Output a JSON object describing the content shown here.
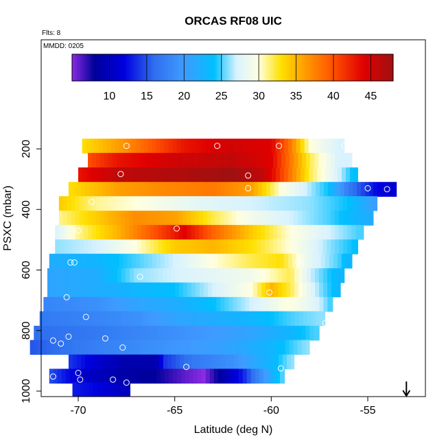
{
  "chart_data": {
    "type": "heatmap",
    "title": "ORCAS RF08 UIC",
    "annotations": {
      "flights": "Flts: 8",
      "date": "MMDD: 0205"
    },
    "xlabel": "Latitude (deg N)",
    "ylabel": "PSXC (mbar)",
    "xlim": [
      -71.8,
      -52.2
    ],
    "ylim": [
      1010,
      100
    ],
    "y_reversed": true,
    "x_ticks": [
      -70,
      -65,
      -60,
      -55
    ],
    "y_ticks": [
      200,
      400,
      600,
      800,
      1000
    ],
    "colorbar": {
      "range": [
        5,
        48
      ],
      "ticks": [
        10,
        15,
        20,
        25,
        30,
        35,
        40,
        45
      ],
      "color_stops": [
        {
          "v": 5,
          "c": "#8a2be2"
        },
        {
          "v": 8,
          "c": "#00009a"
        },
        {
          "v": 12,
          "c": "#0000e0"
        },
        {
          "v": 16,
          "c": "#2f6fef"
        },
        {
          "v": 20,
          "c": "#3f9bff"
        },
        {
          "v": 24,
          "c": "#00bfff"
        },
        {
          "v": 27,
          "c": "#d8f2ff"
        },
        {
          "v": 30,
          "c": "#ffffe0"
        },
        {
          "v": 33,
          "c": "#ffe000"
        },
        {
          "v": 36,
          "c": "#ffa000"
        },
        {
          "v": 40,
          "c": "#ff5000"
        },
        {
          "v": 44,
          "c": "#e00000"
        },
        {
          "v": 48,
          "c": "#a01010"
        }
      ]
    },
    "rows": [
      {
        "p": 190,
        "x0": -69.8,
        "x1": -56.2,
        "values": [
          {
            "x": -69.8,
            "v": 33
          },
          {
            "x": -68,
            "v": 36
          },
          {
            "x": -66,
            "v": 40
          },
          {
            "x": -64.5,
            "v": 43
          },
          {
            "x": -62,
            "v": 45
          },
          {
            "x": -60,
            "v": 44
          },
          {
            "x": -59,
            "v": 38
          },
          {
            "x": -58,
            "v": 30
          },
          {
            "x": -56.5,
            "v": 27
          }
        ]
      },
      {
        "p": 237,
        "x0": -69.5,
        "x1": -55.8,
        "values": [
          {
            "x": -69.5,
            "v": 40
          },
          {
            "x": -68,
            "v": 43
          },
          {
            "x": -65,
            "v": 45
          },
          {
            "x": -62,
            "v": 46
          },
          {
            "x": -60,
            "v": 44
          },
          {
            "x": -59,
            "v": 38
          },
          {
            "x": -58,
            "v": 32
          },
          {
            "x": -56.5,
            "v": 27
          }
        ]
      },
      {
        "p": 285,
        "x0": -70.0,
        "x1": -55.5,
        "values": [
          {
            "x": -70,
            "v": 43
          },
          {
            "x": -68,
            "v": 46
          },
          {
            "x": -65,
            "v": 47
          },
          {
            "x": -62,
            "v": 48
          },
          {
            "x": -60.5,
            "v": 46
          },
          {
            "x": -60,
            "v": 44
          },
          {
            "x": -59,
            "v": 38
          },
          {
            "x": -58,
            "v": 32
          },
          {
            "x": -56.5,
            "v": 27
          },
          {
            "x": -55.8,
            "v": 24
          }
        ]
      },
      {
        "p": 333,
        "x0": -70.5,
        "x1": -53.5,
        "values": [
          {
            "x": -70.5,
            "v": 33
          },
          {
            "x": -68,
            "v": 36
          },
          {
            "x": -66,
            "v": 37
          },
          {
            "x": -63,
            "v": 38
          },
          {
            "x": -61,
            "v": 36
          },
          {
            "x": -59.5,
            "v": 30
          },
          {
            "x": -57,
            "v": 24
          },
          {
            "x": -56,
            "v": 17
          },
          {
            "x": -54.5,
            "v": 12
          },
          {
            "x": -53.5,
            "v": 11
          }
        ]
      },
      {
        "p": 380,
        "x0": -71.0,
        "x1": -54.5,
        "values": [
          {
            "x": -71,
            "v": 34
          },
          {
            "x": -69,
            "v": 31
          },
          {
            "x": -67,
            "v": 30
          },
          {
            "x": -64,
            "v": 28
          },
          {
            "x": -61,
            "v": 27
          },
          {
            "x": -58,
            "v": 26
          },
          {
            "x": -56,
            "v": 24
          },
          {
            "x": -54.5,
            "v": 20
          }
        ]
      },
      {
        "p": 428,
        "x0": -71.0,
        "x1": -54.7,
        "values": [
          {
            "x": -71,
            "v": 31
          },
          {
            "x": -69,
            "v": 34
          },
          {
            "x": -67,
            "v": 37
          },
          {
            "x": -65,
            "v": 36
          },
          {
            "x": -63,
            "v": 32
          },
          {
            "x": -61,
            "v": 29
          },
          {
            "x": -59,
            "v": 27
          },
          {
            "x": -57,
            "v": 25
          },
          {
            "x": -55,
            "v": 22
          }
        ]
      },
      {
        "p": 475,
        "x0": -71.2,
        "x1": -55.2,
        "values": [
          {
            "x": -71.2,
            "v": 27
          },
          {
            "x": -70,
            "v": 31
          },
          {
            "x": -68,
            "v": 35
          },
          {
            "x": -66,
            "v": 40
          },
          {
            "x": -64.5,
            "v": 44
          },
          {
            "x": -63,
            "v": 39
          },
          {
            "x": -61,
            "v": 34
          },
          {
            "x": -59,
            "v": 30
          },
          {
            "x": -57,
            "v": 27
          },
          {
            "x": -55.5,
            "v": 25
          }
        ]
      },
      {
        "p": 523,
        "x0": -71.2,
        "x1": -55.5,
        "values": [
          {
            "x": -71.2,
            "v": 26
          },
          {
            "x": -69,
            "v": 27
          },
          {
            "x": -67,
            "v": 30
          },
          {
            "x": -65,
            "v": 34
          },
          {
            "x": -63,
            "v": 35
          },
          {
            "x": -61,
            "v": 33
          },
          {
            "x": -59,
            "v": 30
          },
          {
            "x": -57,
            "v": 26
          },
          {
            "x": -55.7,
            "v": 24
          }
        ]
      },
      {
        "p": 570,
        "x0": -71.5,
        "x1": -55.8,
        "values": [
          {
            "x": -71.5,
            "v": 22
          },
          {
            "x": -69,
            "v": 23
          },
          {
            "x": -67,
            "v": 25
          },
          {
            "x": -65,
            "v": 27
          },
          {
            "x": -63,
            "v": 30
          },
          {
            "x": -61,
            "v": 32
          },
          {
            "x": -59.5,
            "v": 33
          },
          {
            "x": -58,
            "v": 28
          },
          {
            "x": -56.5,
            "v": 25
          },
          {
            "x": -56,
            "v": 23
          }
        ]
      },
      {
        "p": 618,
        "x0": -71.6,
        "x1": -56.2,
        "values": [
          {
            "x": -71.6,
            "v": 21
          },
          {
            "x": -69,
            "v": 22
          },
          {
            "x": -67,
            "v": 26
          },
          {
            "x": -65,
            "v": 27
          },
          {
            "x": -63,
            "v": 28
          },
          {
            "x": -61,
            "v": 29
          },
          {
            "x": -59,
            "v": 32
          },
          {
            "x": -58,
            "v": 27
          },
          {
            "x": -56.5,
            "v": 23
          }
        ]
      },
      {
        "p": 665,
        "x0": -71.6,
        "x1": -56.4,
        "values": [
          {
            "x": -71.6,
            "v": 21
          },
          {
            "x": -69,
            "v": 22
          },
          {
            "x": -67,
            "v": 23
          },
          {
            "x": -65,
            "v": 24
          },
          {
            "x": -63,
            "v": 27
          },
          {
            "x": -61,
            "v": 30
          },
          {
            "x": -60,
            "v": 35
          },
          {
            "x": -59,
            "v": 32
          },
          {
            "x": -57.5,
            "v": 26
          },
          {
            "x": -56.5,
            "v": 23
          }
        ]
      },
      {
        "p": 713,
        "x0": -71.8,
        "x1": -56.8,
        "values": [
          {
            "x": -71.8,
            "v": 18
          },
          {
            "x": -69,
            "v": 19
          },
          {
            "x": -67,
            "v": 21
          },
          {
            "x": -65,
            "v": 22
          },
          {
            "x": -63,
            "v": 24
          },
          {
            "x": -61,
            "v": 27
          },
          {
            "x": -59,
            "v": 30
          },
          {
            "x": -57.5,
            "v": 27
          },
          {
            "x": -57,
            "v": 25
          }
        ]
      },
      {
        "p": 760,
        "x0": -72.0,
        "x1": -57.2,
        "values": [
          {
            "x": -72,
            "v": 17
          },
          {
            "x": -69,
            "v": 18
          },
          {
            "x": -67,
            "v": 19
          },
          {
            "x": -65,
            "v": 21
          },
          {
            "x": -63,
            "v": 22
          },
          {
            "x": -61,
            "v": 23
          },
          {
            "x": -59,
            "v": 25
          },
          {
            "x": -57.5,
            "v": 26
          }
        ]
      },
      {
        "p": 808,
        "x0": -72.3,
        "x1": -57.5,
        "values": [
          {
            "x": -72.3,
            "v": 16
          },
          {
            "x": -69,
            "v": 17
          },
          {
            "x": -67,
            "v": 18
          },
          {
            "x": -65,
            "v": 19
          },
          {
            "x": -63,
            "v": 20
          },
          {
            "x": -61,
            "v": 21
          },
          {
            "x": -59,
            "v": 23
          },
          {
            "x": -57.8,
            "v": 25
          }
        ]
      },
      {
        "p": 855,
        "x0": -72.5,
        "x1": -58.0,
        "values": [
          {
            "x": -72.5,
            "v": 15
          },
          {
            "x": -70,
            "v": 17
          },
          {
            "x": -68,
            "v": 18
          },
          {
            "x": -66,
            "v": 19
          },
          {
            "x": -64,
            "v": 20
          },
          {
            "x": -62,
            "v": 21
          },
          {
            "x": -60,
            "v": 23
          },
          {
            "x": -58.2,
            "v": 26
          }
        ]
      },
      {
        "p": 903,
        "x0": -70.5,
        "x1": -58.8,
        "values": [
          {
            "x": -70.5,
            "v": 14
          },
          {
            "x": -69,
            "v": 11
          },
          {
            "x": -67.5,
            "v": 9
          },
          {
            "x": -66,
            "v": 9
          },
          {
            "x": -65.5,
            "v": 14
          },
          {
            "x": -64,
            "v": 17
          },
          {
            "x": -62,
            "v": 19
          },
          {
            "x": -60,
            "v": 23
          },
          {
            "x": -59,
            "v": 26
          }
        ]
      },
      {
        "p": 950,
        "x0": -71.5,
        "x1": -59.3,
        "values": [
          {
            "x": -71.5,
            "v": 15
          },
          {
            "x": -70,
            "v": 11
          },
          {
            "x": -68,
            "v": 9
          },
          {
            "x": -66,
            "v": 8
          },
          {
            "x": -64.5,
            "v": 6
          },
          {
            "x": -63.5,
            "v": 5
          },
          {
            "x": -62.5,
            "v": 9
          },
          {
            "x": -61.5,
            "v": 13
          },
          {
            "x": -60.5,
            "v": 19
          },
          {
            "x": -59.5,
            "v": 25
          }
        ]
      },
      {
        "p": 995,
        "x0": -70.3,
        "x1": -67.3,
        "values": [
          {
            "x": -70.3,
            "v": 13
          },
          {
            "x": -69,
            "v": 12
          },
          {
            "x": -67.5,
            "v": 10
          }
        ]
      }
    ],
    "points": [
      {
        "x": -67.5,
        "y": 190
      },
      {
        "x": -62.8,
        "y": 190
      },
      {
        "x": -59.6,
        "y": 190
      },
      {
        "x": -56.2,
        "y": 190
      },
      {
        "x": -67.8,
        "y": 283
      },
      {
        "x": -61.2,
        "y": 288
      },
      {
        "x": -61.2,
        "y": 330
      },
      {
        "x": -55.0,
        "y": 330
      },
      {
        "x": -54.0,
        "y": 333
      },
      {
        "x": -69.3,
        "y": 375
      },
      {
        "x": -64.9,
        "y": 463
      },
      {
        "x": -70.0,
        "y": 470
      },
      {
        "x": -70.4,
        "y": 575
      },
      {
        "x": -70.2,
        "y": 575
      },
      {
        "x": -58.6,
        "y": 575
      },
      {
        "x": -66.8,
        "y": 622
      },
      {
        "x": -60.1,
        "y": 674
      },
      {
        "x": -70.6,
        "y": 690
      },
      {
        "x": -69.6,
        "y": 755
      },
      {
        "x": -57.2,
        "y": 775
      },
      {
        "x": -70.5,
        "y": 820
      },
      {
        "x": -71.3,
        "y": 833
      },
      {
        "x": -70.9,
        "y": 843
      },
      {
        "x": -68.6,
        "y": 826
      },
      {
        "x": -67.7,
        "y": 856
      },
      {
        "x": -70.0,
        "y": 940
      },
      {
        "x": -64.4,
        "y": 920
      },
      {
        "x": -59.5,
        "y": 925
      },
      {
        "x": -71.3,
        "y": 952
      },
      {
        "x": -69.9,
        "y": 962
      },
      {
        "x": -68.2,
        "y": 962
      },
      {
        "x": -67.5,
        "y": 972
      }
    ],
    "arrow": {
      "x": -53.0,
      "direction": "down"
    }
  }
}
